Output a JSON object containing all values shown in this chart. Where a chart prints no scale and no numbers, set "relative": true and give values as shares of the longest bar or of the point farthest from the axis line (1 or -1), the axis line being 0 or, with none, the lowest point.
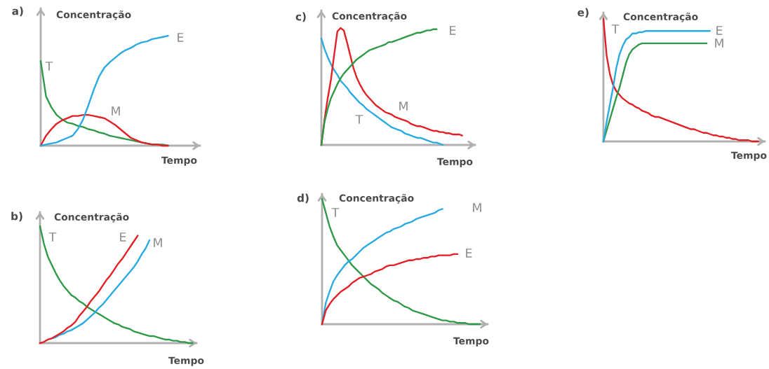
{
  "chart_data": [
    {
      "type": "line",
      "title": "a)",
      "xlabel": "Tempo",
      "ylabel": "Concentração",
      "relative": true,
      "categories": [
        null,
        null,
        null,
        null,
        null,
        null,
        null,
        null,
        null,
        null,
        null,
        null,
        null,
        null,
        null,
        null,
        null,
        null,
        null,
        null,
        null,
        null,
        null,
        null,
        null,
        null,
        null,
        null,
        null,
        null,
        null
      ],
      "series": [
        {
          "name": "T",
          "color": "#2e9a48",
          "values": [
            0.77,
            0.45,
            0.35,
            0.28,
            0.24,
            0.21,
            0.2,
            0.18,
            0.17,
            0.15,
            0.14,
            0.12,
            0.11,
            0.09,
            0.08,
            0.07,
            0.06,
            0.05,
            0.04,
            0.03,
            0.02,
            0.01,
            0.01,
            0.01,
            0,
            null,
            null,
            null,
            null,
            null,
            null
          ]
        },
        {
          "name": "M",
          "color": "#e31e24",
          "values": [
            0,
            0.09,
            0.15,
            0.2,
            0.23,
            0.25,
            0.27,
            0.27,
            0.28,
            0.28,
            0.27,
            0.26,
            0.25,
            0.22,
            0.19,
            0.15,
            0.11,
            0.07,
            0.05,
            0.03,
            0.02,
            0.01,
            0.01,
            0,
            0,
            null,
            null,
            null,
            null,
            null,
            null
          ]
        },
        {
          "name": "E",
          "color": "#29aae1",
          "values": [
            0,
            0.01,
            0.02,
            0.03,
            0.05,
            0.07,
            0.09,
            0.15,
            0.24,
            0.37,
            0.51,
            0.63,
            0.71,
            0.76,
            0.8,
            0.84,
            0.87,
            0.89,
            0.92,
            0.94,
            0.95,
            0.97,
            0.98,
            0.99,
            1,
            null,
            null,
            null,
            null,
            null,
            null
          ]
        }
      ]
    },
    {
      "type": "line",
      "title": "b)",
      "xlabel": "Tempo",
      "ylabel": "Concentração",
      "relative": true,
      "categories": [
        null,
        null,
        null,
        null,
        null,
        null,
        null,
        null,
        null,
        null,
        null,
        null,
        null,
        null,
        null,
        null,
        null,
        null,
        null,
        null,
        null,
        null,
        null,
        null,
        null,
        null,
        null,
        null,
        null,
        null,
        null,
        null,
        null,
        null,
        null,
        null,
        null,
        null,
        null,
        null,
        null
      ],
      "series": [
        {
          "name": "T",
          "color": "#2e9a48",
          "values": [
            1,
            0.85,
            0.74,
            0.67,
            0.6,
            0.54,
            0.49,
            0.45,
            0.41,
            0.39,
            0.36,
            0.34,
            0.31,
            0.29,
            0.27,
            0.25,
            0.23,
            0.21,
            0.19,
            0.17,
            0.16,
            0.14,
            0.13,
            0.12,
            0.1,
            0.09,
            0.08,
            0.07,
            0.06,
            0.06,
            0.05,
            0.04,
            0.03,
            0.03,
            0.02,
            0.02,
            0.01,
            0.01,
            0,
            0,
            null
          ]
        },
        {
          "name": "M",
          "color": "#29aae1",
          "values": [
            null,
            null,
            null,
            0.04,
            0.05,
            0.07,
            0.08,
            0.1,
            0.11,
            0.13,
            0.15,
            0.17,
            0.2,
            0.23,
            0.26,
            0.3,
            0.33,
            0.37,
            0.41,
            0.45,
            0.49,
            0.53,
            0.57,
            0.61,
            0.65,
            0.7,
            0.76,
            0.81,
            0.88,
            null,
            null,
            null,
            null,
            null,
            null,
            null,
            null,
            null,
            null,
            null,
            null
          ]
        },
        {
          "name": "E",
          "color": "#e31e24",
          "values": [
            0,
            0.01,
            0.03,
            0.04,
            0.06,
            0.08,
            0.1,
            0.13,
            0.15,
            0.18,
            0.23,
            0.27,
            0.31,
            0.36,
            0.4,
            0.44,
            0.49,
            0.54,
            0.58,
            0.63,
            0.68,
            0.72,
            0.77,
            0.82,
            0.87,
            0.92,
            null,
            null,
            null,
            null,
            null,
            null,
            null,
            null,
            null,
            null,
            null,
            null,
            null,
            null,
            null
          ]
        }
      ]
    },
    {
      "type": "line",
      "title": "c)",
      "xlabel": "Tempo",
      "ylabel": "Concentração",
      "relative": true,
      "categories": [
        null,
        null,
        null,
        null,
        null,
        null,
        null,
        null,
        null,
        null,
        null,
        null,
        null,
        null,
        null,
        null,
        null,
        null,
        null,
        null,
        null,
        null,
        null,
        null,
        null,
        null,
        null,
        null,
        null,
        null,
        null,
        null,
        null,
        null,
        null,
        null,
        null,
        null,
        null,
        null,
        null,
        null,
        null,
        null,
        null,
        null,
        null,
        null,
        null
      ],
      "series": [
        {
          "name": "T",
          "color": "#29aae1",
          "values": [
            0.91,
            0.82,
            0.75,
            0.69,
            0.64,
            0.6,
            0.55,
            0.52,
            0.49,
            0.45,
            0.42,
            0.39,
            0.36,
            0.34,
            0.31,
            0.29,
            0.27,
            0.25,
            0.23,
            0.21,
            0.19,
            0.17,
            0.15,
            0.14,
            0.13,
            0.12,
            0.1,
            0.09,
            0.08,
            0.07,
            0.06,
            0.06,
            0.05,
            0.04,
            0.03,
            0.02,
            0.02,
            0.01,
            0,
            null,
            null,
            null,
            null,
            null,
            null,
            null,
            null,
            null,
            null
          ]
        },
        {
          "name": "M",
          "color": "#e31e24",
          "values": [
            0,
            0.22,
            0.4,
            0.56,
            0.77,
            0.97,
            1,
            0.98,
            0.88,
            0.77,
            0.66,
            0.58,
            0.52,
            0.47,
            0.43,
            0.4,
            0.37,
            0.34,
            0.32,
            0.3,
            0.28,
            0.27,
            0.26,
            0.24,
            0.23,
            0.22,
            0.21,
            0.2,
            0.18,
            0.17,
            0.16,
            0.16,
            0.15,
            0.14,
            0.13,
            0.12,
            0.12,
            0.11,
            0.11,
            0.1,
            0.1,
            0.09,
            0.09,
            0.09,
            0.08,
            null,
            null,
            null,
            null
          ]
        },
        {
          "name": "E",
          "color": "#2e9a48",
          "values": [
            0,
            0.2,
            0.31,
            0.4,
            0.46,
            0.52,
            0.57,
            0.61,
            0.64,
            0.67,
            0.7,
            0.73,
            0.75,
            0.77,
            0.79,
            0.81,
            0.82,
            0.83,
            0.84,
            0.85,
            0.86,
            0.88,
            0.88,
            0.89,
            0.9,
            0.91,
            0.92,
            0.93,
            0.94,
            0.95,
            0.96,
            0.96,
            0.97,
            0.98,
            0.98,
            0.99,
            0.99,
            null,
            null,
            null,
            null,
            null,
            null,
            null,
            null,
            null,
            null,
            null,
            null
          ]
        }
      ]
    },
    {
      "type": "line",
      "title": "d)",
      "xlabel": "Tempo",
      "ylabel": "Concentração",
      "relative": true,
      "categories": [
        null,
        null,
        null,
        null,
        null,
        null,
        null,
        null,
        null,
        null,
        null,
        null,
        null,
        null,
        null,
        null,
        null,
        null,
        null,
        null,
        null,
        null,
        null,
        null,
        null,
        null,
        null,
        null,
        null,
        null,
        null,
        null,
        null,
        null,
        null,
        null,
        null,
        null,
        null,
        null,
        null,
        null,
        null,
        null,
        null
      ],
      "series": [
        {
          "name": "T",
          "color": "#2e9a48",
          "values": [
            1,
            0.89,
            0.78,
            0.7,
            0.63,
            0.59,
            0.55,
            0.51,
            0.47,
            0.44,
            0.41,
            0.38,
            0.35,
            0.32,
            0.3,
            0.28,
            0.25,
            0.23,
            0.21,
            0.19,
            0.18,
            0.16,
            0.14,
            0.13,
            0.11,
            0.1,
            0.09,
            0.08,
            0.07,
            0.06,
            0.05,
            0.04,
            0.03,
            0.03,
            0.02,
            0.02,
            0.01,
            0.01,
            0.01,
            0,
            0,
            0,
            0,
            null,
            null
          ]
        },
        {
          "name": "M",
          "color": "#29aae1",
          "values": [
            0,
            0.17,
            0.26,
            0.34,
            0.39,
            0.43,
            0.47,
            0.5,
            0.52,
            0.55,
            0.58,
            0.61,
            0.63,
            0.65,
            0.67,
            0.69,
            0.71,
            0.73,
            0.74,
            0.76,
            0.77,
            0.78,
            0.8,
            0.81,
            0.82,
            0.84,
            0.85,
            0.86,
            0.87,
            0.88,
            0.89,
            0.91,
            0.92,
            null,
            null,
            null,
            null,
            null,
            null,
            null,
            null,
            null,
            null,
            null,
            null
          ]
        },
        {
          "name": "E",
          "color": "#e31e24",
          "values": [
            0,
            0.11,
            0.16,
            0.2,
            0.23,
            0.26,
            0.28,
            0.3,
            0.33,
            0.35,
            0.37,
            0.38,
            0.39,
            0.4,
            0.42,
            0.43,
            0.44,
            0.46,
            0.47,
            0.47,
            0.48,
            0.49,
            0.5,
            0.51,
            0.51,
            0.52,
            0.52,
            0.53,
            0.53,
            0.54,
            0.54,
            0.55,
            0.55,
            0.55,
            0.55,
            0.56,
            0.56,
            null,
            null,
            null,
            null,
            null,
            null,
            null,
            null
          ]
        }
      ]
    },
    {
      "type": "line",
      "title": "e)",
      "xlabel": "Tempo",
      "ylabel": "Concentração",
      "relative": true,
      "categories": [
        null,
        null,
        null,
        null,
        null,
        null,
        null,
        null,
        null,
        null,
        null,
        null,
        null,
        null,
        null,
        null,
        null,
        null,
        null,
        null,
        null,
        null,
        null,
        null,
        null,
        null,
        null,
        null,
        null,
        null,
        null,
        null,
        null,
        null,
        null,
        null,
        null,
        null,
        null,
        null,
        null,
        null,
        null,
        null,
        null,
        null,
        null,
        null,
        null,
        null,
        null
      ],
      "series": [
        {
          "name": "T",
          "color": "#e31e24",
          "values": [
            1,
            0.7,
            0.55,
            0.46,
            0.41,
            0.38,
            0.35,
            0.33,
            0.31,
            0.3,
            0.28,
            0.27,
            0.25,
            0.24,
            0.23,
            0.21,
            0.2,
            0.2,
            0.19,
            0.18,
            0.17,
            0.16,
            0.15,
            0.14,
            0.13,
            0.12,
            0.11,
            0.1,
            0.1,
            0.09,
            0.08,
            0.07,
            0.07,
            0.06,
            0.05,
            0.05,
            0.04,
            0.04,
            0.03,
            0.03,
            0.02,
            0.02,
            0.01,
            0.01,
            0.01,
            0.01,
            0,
            0,
            0,
            null,
            null
          ]
        },
        {
          "name": "M",
          "color": "#2e9a48",
          "values": [
            0,
            0.09,
            0.18,
            0.27,
            0.36,
            0.44,
            0.54,
            0.64,
            0.71,
            0.75,
            0.77,
            0.79,
            0.8,
            0.8,
            0.8,
            0.8,
            0.8,
            0.8,
            0.8,
            0.8,
            0.8,
            0.8,
            0.8,
            0.8,
            0.8,
            0.8,
            0.8,
            0.8,
            0.8,
            0.8,
            0.8,
            0.8,
            0.8,
            null,
            null,
            null,
            null,
            null,
            null,
            null,
            null,
            null,
            null,
            null,
            null,
            null,
            null,
            null,
            null,
            null,
            null
          ]
        },
        {
          "name": "E",
          "color": "#29aae1",
          "values": [
            0,
            0.16,
            0.3,
            0.44,
            0.6,
            0.71,
            0.78,
            0.83,
            0.85,
            0.88,
            0.88,
            0.89,
            0.89,
            0.9,
            0.9,
            0.9,
            0.9,
            0.9,
            0.9,
            0.9,
            0.9,
            0.9,
            0.9,
            0.9,
            0.9,
            0.9,
            0.9,
            0.9,
            0.9,
            0.9,
            0.9,
            0.9,
            0.9,
            0.9,
            null,
            null,
            null,
            null,
            null,
            null,
            null,
            null,
            null,
            null,
            null,
            null,
            null,
            null,
            null,
            null,
            null
          ]
        }
      ]
    }
  ]
}
